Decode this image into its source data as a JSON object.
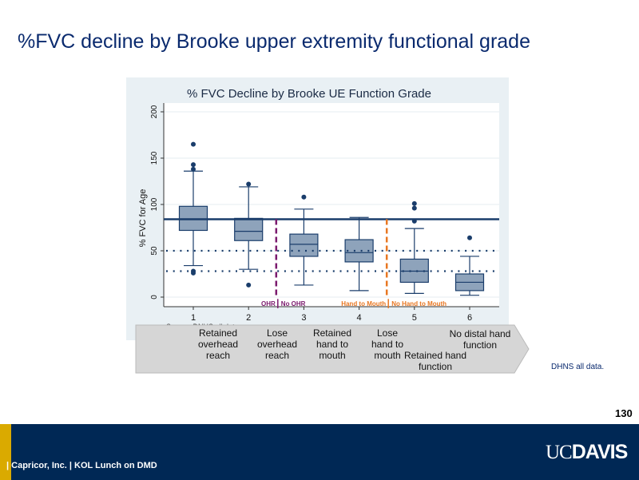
{
  "slide": {
    "title": "%FVC decline by Brooke upper extremity functional grade",
    "source_note": "DHNS all data.",
    "page_number": "130",
    "footer_text": "| Capricor, Inc. | KOL Lunch on DMD",
    "logo_uc": "UC",
    "logo_davis": "DAVIS"
  },
  "flow_labels": [
    "Retained overhead reach",
    "Lose overhead reach",
    "Retained hand to mouth",
    "Lose hand to mouth",
    "Retained hand function",
    "No distal hand function"
  ],
  "chart_data": {
    "type": "box",
    "title": "% FVC Decline by Brooke UE Function Grade",
    "xlabel": "",
    "ylabel": "% FVC for Age",
    "source": "Source: DNHS all data",
    "categories": [
      "1",
      "2",
      "3",
      "4",
      "5",
      "6"
    ],
    "ylim": [
      0,
      200
    ],
    "yticks": [
      "0",
      "50",
      "100",
      "150",
      "200"
    ],
    "grid": true,
    "boxes": [
      {
        "category": "1",
        "lower_whisker": 34,
        "q1": 72,
        "median": 84,
        "q3": 98,
        "upper_whisker": 136,
        "outliers": [
          165,
          143,
          138,
          28,
          26
        ]
      },
      {
        "category": "2",
        "lower_whisker": 30,
        "q1": 61,
        "median": 71,
        "q3": 85,
        "upper_whisker": 119,
        "outliers": [
          122,
          13
        ]
      },
      {
        "category": "3",
        "lower_whisker": 13,
        "q1": 44,
        "median": 57,
        "q3": 68,
        "upper_whisker": 95,
        "outliers": [
          108
        ]
      },
      {
        "category": "4",
        "lower_whisker": 7,
        "q1": 38,
        "median": 48,
        "q3": 62,
        "upper_whisker": 86,
        "outliers": []
      },
      {
        "category": "5",
        "lower_whisker": 4,
        "q1": 16,
        "median": 28,
        "q3": 41,
        "upper_whisker": 74,
        "outliers": [
          101,
          96,
          82
        ]
      },
      {
        "category": "6",
        "lower_whisker": 2,
        "q1": 7,
        "median": 16,
        "q3": 25,
        "upper_whisker": 44,
        "outliers": [
          64
        ]
      }
    ],
    "reference_lines": [
      {
        "value": 84,
        "style": "solid",
        "color": "#1a3d6b"
      },
      {
        "value": 50,
        "style": "dotted",
        "color": "#1a3d6b"
      },
      {
        "value": 28,
        "style": "dotted",
        "color": "#1a3d6b"
      }
    ],
    "dividers": [
      {
        "x": 2.5,
        "top": 84,
        "color": "#7b1a6e",
        "left_label": "OHR",
        "right_label": "No OHR"
      },
      {
        "x": 4.5,
        "top": 84,
        "color": "#e87722",
        "left_label": "Hand to Mouth",
        "right_label": "No Hand to Mouth"
      }
    ],
    "colors": {
      "box_fill": "#8ea3bb",
      "box_stroke": "#1a3d6b",
      "plot_bg": "#ffffff",
      "panel_bg": "#e9f0f4"
    }
  }
}
